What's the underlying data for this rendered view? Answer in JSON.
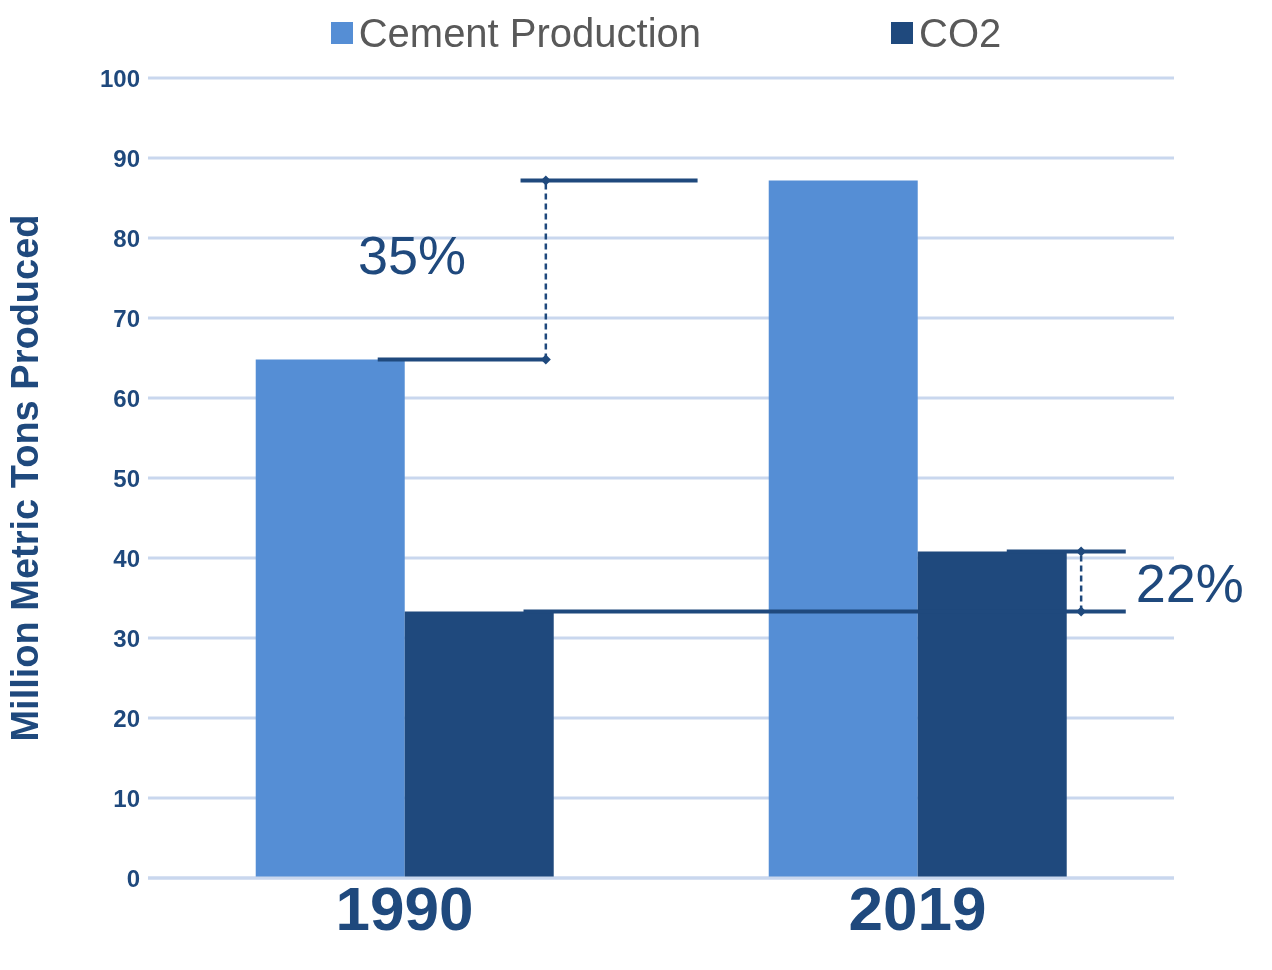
{
  "chart_data": {
    "type": "bar",
    "ylabel": "Million Metric Tons Produced",
    "categories": [
      "1990",
      "2019"
    ],
    "series": [
      {
        "name": "Cement Production",
        "color": "#558ed5",
        "values": [
          64.8,
          87.2
        ]
      },
      {
        "name": "CO2",
        "color": "#1f497d",
        "values": [
          33.3,
          40.8
        ]
      }
    ],
    "ylim": [
      0,
      100
    ],
    "yticks": [
      0,
      10,
      20,
      30,
      40,
      50,
      60,
      70,
      80,
      90,
      100
    ],
    "grid": "y",
    "legend": "top",
    "annotations": [
      "35%",
      "22%"
    ]
  }
}
